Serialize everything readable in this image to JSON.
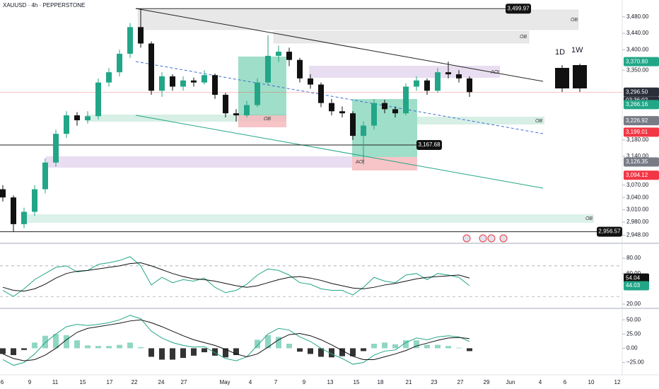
{
  "chart_data": [
    {
      "type": "candlestick",
      "title": "XAUUSD · 4h · PEPPERSTONE",
      "up_color": "#22a687",
      "down_color": "#111111",
      "ohlc": [
        [
          3060,
          3070,
          3030,
          3040
        ],
        [
          3040,
          3045,
          2956.57,
          2975
        ],
        [
          2975,
          3015,
          2965,
          3005
        ],
        [
          3005,
          3070,
          2995,
          3060
        ],
        [
          3060,
          3135,
          3050,
          3125
        ],
        [
          3125,
          3205,
          3115,
          3195
        ],
        [
          3195,
          3250,
          3185,
          3240
        ],
        [
          3240,
          3248,
          3215,
          3228
        ],
        [
          3228,
          3250,
          3220,
          3238
        ],
        [
          3238,
          3330,
          3230,
          3320
        ],
        [
          3320,
          3355,
          3310,
          3345
        ],
        [
          3345,
          3400,
          3335,
          3390
        ],
        [
          3390,
          3465,
          3380,
          3455
        ],
        [
          3455,
          3499.97,
          3405,
          3415
        ],
        [
          3415,
          3420,
          3290,
          3300
        ],
        [
          3300,
          3345,
          3285,
          3335
        ],
        [
          3335,
          3340,
          3300,
          3310
        ],
        [
          3310,
          3335,
          3300,
          3325
        ],
        [
          3325,
          3332,
          3310,
          3320
        ],
        [
          3320,
          3350,
          3315,
          3338
        ],
        [
          3338,
          3342,
          3280,
          3290
        ],
        [
          3290,
          3295,
          3235,
          3245
        ],
        [
          3245,
          3255,
          3225,
          3240
        ],
        [
          3240,
          3275,
          3235,
          3265
        ],
        [
          3265,
          3330,
          3260,
          3320
        ],
        [
          3320,
          3435,
          3315,
          3385
        ],
        [
          3385,
          3410,
          3370,
          3395
        ],
        [
          3395,
          3405,
          3360,
          3375
        ],
        [
          3375,
          3380,
          3320,
          3330
        ],
        [
          3330,
          3340,
          3305,
          3315
        ],
        [
          3315,
          3320,
          3260,
          3270
        ],
        [
          3270,
          3280,
          3240,
          3250
        ],
        [
          3250,
          3262,
          3235,
          3245
        ],
        [
          3245,
          3250,
          3180,
          3190
        ],
        [
          3190,
          3225,
          3120,
          3215
        ],
        [
          3215,
          3280,
          3205,
          3270
        ],
        [
          3270,
          3278,
          3245,
          3255
        ],
        [
          3255,
          3262,
          3235,
          3245
        ],
        [
          3245,
          3318,
          3240,
          3310
        ],
        [
          3310,
          3335,
          3300,
          3325
        ],
        [
          3325,
          3330,
          3290,
          3300
        ],
        [
          3300,
          3355,
          3295,
          3345
        ],
        [
          3345,
          3370.8,
          3330,
          3340
        ],
        [
          3340,
          3350,
          3320,
          3330
        ],
        [
          3330,
          3335,
          3285,
          3296.5
        ]
      ],
      "ylim": [
        2930,
        3521
      ],
      "yticks": [
        {
          "value": 3480,
          "label": "3,480.00"
        },
        {
          "value": 3440,
          "label": "3,440.00"
        },
        {
          "value": 3400,
          "label": "3,400.00"
        },
        {
          "value": 3350,
          "label": "3,350.00"
        },
        {
          "value": 3180,
          "label": "3,180.00"
        },
        {
          "value": 3140,
          "label": "3,140.00"
        },
        {
          "value": 3070,
          "label": "3,070.00"
        },
        {
          "value": 3040,
          "label": "3,040.00"
        },
        {
          "value": 3010,
          "label": "3,010.00"
        },
        {
          "value": 2980,
          "label": "2,980.00"
        },
        {
          "value": 2948,
          "label": "2,948.00"
        }
      ],
      "price_labels": [
        {
          "value": 3370.8,
          "label": "3,370.80",
          "color": "#22a687"
        },
        {
          "value": 3296.5,
          "label": "3,296.50",
          "color": "#2a2e39"
        },
        {
          "value": 3266.16,
          "label": "3,266.16",
          "color": "#22a687"
        },
        {
          "value": 3226.92,
          "label": "3,226.92",
          "color": "#787b86"
        },
        {
          "value": 3199.01,
          "label": "3,199.01",
          "color": "#f23645"
        },
        {
          "value": 3126.35,
          "label": "3,126.35",
          "color": "#787b86"
        },
        {
          "value": 3094.12,
          "label": "3,094.12",
          "color": "#f23645"
        }
      ],
      "countdown": "03:36:02",
      "callouts": [
        {
          "value": 3499.97,
          "label": "3,499.97"
        },
        {
          "value": 3167.68,
          "label": "3,167.68"
        },
        {
          "value": 2956.57,
          "label": "2,956.57"
        }
      ],
      "annotations": [
        "OB",
        "OB",
        "AOI",
        "OB",
        "OB",
        "AOI",
        "OB"
      ],
      "timeframes": [
        "1D",
        "1W"
      ],
      "date_labels": [
        "6",
        "9",
        "11",
        "15",
        "17",
        "22",
        "24",
        "27",
        "May",
        "4",
        "7",
        "9",
        "13",
        "15",
        "18",
        "21",
        "23",
        "27",
        "29",
        "Jun",
        "4",
        "6",
        "10",
        "12"
      ]
    },
    {
      "type": "line",
      "series": [
        {
          "color": "#22a687",
          "values": [
            38,
            30,
            40,
            52,
            60,
            68,
            70,
            62,
            64,
            72,
            74,
            77,
            82,
            70,
            45,
            55,
            48,
            52,
            50,
            54,
            42,
            35,
            38,
            46,
            58,
            66,
            64,
            58,
            48,
            46,
            40,
            38,
            38,
            32,
            42,
            55,
            50,
            48,
            58,
            60,
            52,
            60,
            58,
            55,
            44.03
          ]
        },
        {
          "color": "#111111",
          "values": [
            42,
            38,
            37,
            40,
            46,
            54,
            60,
            63,
            64,
            66,
            68,
            70,
            73,
            74,
            70,
            65,
            60,
            56,
            53,
            52,
            50,
            47,
            44,
            42,
            44,
            48,
            52,
            55,
            56,
            54,
            51,
            47,
            44,
            41,
            40,
            42,
            45,
            47,
            50,
            53,
            55,
            56,
            57,
            58,
            54.04
          ]
        }
      ],
      "bands": [
        70,
        30
      ],
      "ylim": [
        15.4,
        98.5
      ],
      "yticks": [
        {
          "value": 80,
          "label": "80.00"
        },
        {
          "value": 60,
          "label": "60.00"
        },
        {
          "value": 20,
          "label": "20.00"
        }
      ],
      "last_labels": [
        {
          "value": 54.04,
          "label": "54.04",
          "color": "#111111"
        },
        {
          "value": 44.03,
          "label": "44.03",
          "color": "#22a687"
        }
      ]
    },
    {
      "type": "macd",
      "series": [
        {
          "color": "#22a687",
          "values": [
            -20,
            -30,
            -25,
            -10,
            10,
            25,
            38,
            42,
            40,
            42,
            45,
            50,
            58,
            52,
            30,
            18,
            10,
            5,
            2,
            3,
            -8,
            -18,
            -22,
            -15,
            5,
            25,
            35,
            32,
            20,
            12,
            0,
            -10,
            -18,
            -28,
            -25,
            -12,
            -5,
            -3,
            10,
            18,
            15,
            20,
            22,
            20,
            12
          ]
        },
        {
          "color": "#111111",
          "values": [
            -10,
            -18,
            -22,
            -20,
            -12,
            0,
            15,
            28,
            35,
            38,
            41,
            44,
            48,
            50,
            45,
            38,
            30,
            22,
            15,
            10,
            5,
            -2,
            -10,
            -15,
            -10,
            2,
            15,
            24,
            26,
            22,
            15,
            6,
            -4,
            -14,
            -20,
            -20,
            -15,
            -10,
            -4,
            4,
            9,
            14,
            18,
            19,
            17
          ]
        }
      ],
      "histogram": [
        -10,
        -12,
        -3,
        10,
        22,
        25,
        23,
        14,
        5,
        4,
        4,
        6,
        10,
        2,
        -15,
        -20,
        -20,
        -17,
        -13,
        -7,
        -13,
        -16,
        -12,
        0,
        15,
        23,
        20,
        8,
        -6,
        -10,
        -15,
        -16,
        -14,
        -14,
        -5,
        8,
        10,
        7,
        14,
        14,
        6,
        6,
        4,
        1,
        -5
      ],
      "hist_colors": [
        "#8fd6c3",
        "#333333"
      ],
      "ylim": [
        -45.5,
        68.9
      ],
      "yticks": [
        {
          "value": 50,
          "label": "50.00"
        },
        {
          "value": 25,
          "label": "25.00"
        },
        {
          "value": 0,
          "label": "0.00"
        },
        {
          "value": -25,
          "label": "−25.00"
        }
      ]
    }
  ]
}
